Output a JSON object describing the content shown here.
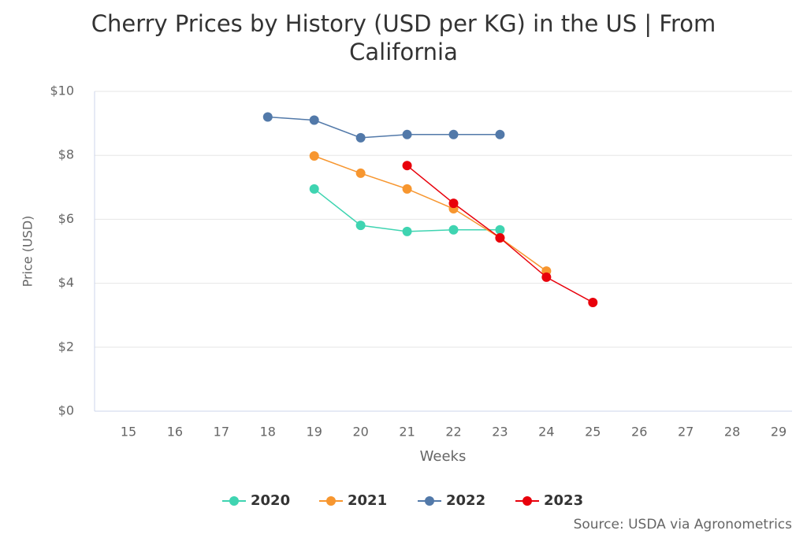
{
  "chart_data": {
    "type": "line",
    "title": "Cherry Prices by History (USD per KG) in the US | From California",
    "x_label": "Weeks",
    "y_label": "Price (USD)",
    "source": "Source: USDA via Agronometrics",
    "categories": [
      "15",
      "16",
      "17",
      "18",
      "19",
      "20",
      "21",
      "22",
      "23",
      "24",
      "25",
      "26",
      "27",
      "28",
      "29"
    ],
    "ylim": [
      0,
      10
    ],
    "yticks": [
      {
        "value": 0,
        "label": "$0"
      },
      {
        "value": 2,
        "label": "$2"
      },
      {
        "value": 4,
        "label": "$4"
      },
      {
        "value": 6,
        "label": "$6"
      },
      {
        "value": 8,
        "label": "$8"
      },
      {
        "value": 10,
        "label": "$10"
      }
    ],
    "grid": true,
    "legend": "bottom",
    "series": [
      {
        "name": "2020",
        "color": "#3fd4b1",
        "values": [
          null,
          null,
          null,
          null,
          6.95,
          5.81,
          5.62,
          5.67,
          5.67,
          null,
          null,
          null,
          null,
          null,
          null
        ]
      },
      {
        "name": "2021",
        "color": "#f7962f",
        "values": [
          null,
          null,
          null,
          null,
          7.98,
          7.44,
          6.95,
          6.33,
          5.42,
          4.38,
          null,
          null,
          null,
          null,
          null
        ]
      },
      {
        "name": "2022",
        "color": "#5279a9",
        "values": [
          null,
          null,
          null,
          9.2,
          9.1,
          8.55,
          8.65,
          8.65,
          8.65,
          null,
          null,
          null,
          null,
          null,
          null
        ]
      },
      {
        "name": "2023",
        "color": "#e8000b",
        "values": [
          null,
          null,
          null,
          null,
          null,
          null,
          7.68,
          6.5,
          5.42,
          4.19,
          3.4,
          null,
          null,
          null,
          null
        ]
      }
    ]
  }
}
